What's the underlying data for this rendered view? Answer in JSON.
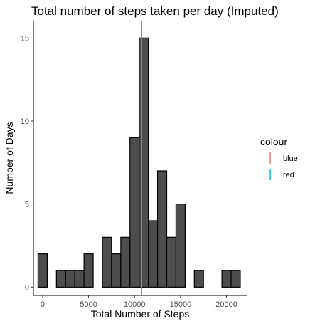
{
  "chart_data": {
    "type": "bar",
    "title": "Total number of steps taken per day (Imputed)",
    "xlabel": "Total Number of Steps",
    "ylabel": "Number of Days",
    "xlim": [
      -1000,
      22200
    ],
    "ylim": [
      -0.5,
      16.0
    ],
    "xticks": [
      0,
      5000,
      10000,
      15000,
      20000
    ],
    "xtick_labels": [
      "0",
      "5000",
      "10000",
      "15000",
      "20000"
    ],
    "yticks": [
      0,
      5,
      10,
      15
    ],
    "ytick_labels": [
      "0",
      "5",
      "10",
      "15"
    ],
    "bin_width": 1000,
    "bin_centers": [
      0,
      1000,
      2000,
      3000,
      4000,
      5000,
      6000,
      7000,
      8000,
      9000,
      10000,
      11000,
      12000,
      13000,
      14000,
      15000,
      16000,
      17000,
      18000,
      19000,
      20000,
      21000
    ],
    "values": [
      2,
      0,
      1,
      1,
      1,
      2,
      0,
      3,
      2,
      3,
      9,
      15,
      4,
      7,
      3,
      5,
      0,
      1,
      0,
      0,
      1,
      1
    ],
    "bar_color": "#4d4d4d",
    "bar_outline": "#000000",
    "vlines": [
      {
        "name": "blue",
        "x": 10766,
        "color": "#F8766D"
      },
      {
        "name": "red",
        "x": 10766,
        "color": "#00BFC4"
      }
    ],
    "grid": false,
    "legend": {
      "title": "colour",
      "placement": "right",
      "entries": [
        {
          "label": "blue",
          "color": "#F8766D"
        },
        {
          "label": "red",
          "color": "#00BFC4"
        }
      ]
    }
  }
}
